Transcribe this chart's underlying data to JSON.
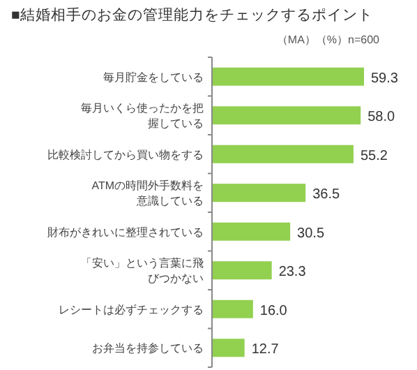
{
  "chart_data": {
    "type": "bar",
    "orientation": "horizontal",
    "title": "■結婚相手のお金の管理能力をチェックするポイント",
    "subtitle": "（MA）（%）n=600",
    "categories": [
      "毎月貯金をしている",
      "毎月いくら使ったかを把握している",
      "比較検討してから買い物をする",
      "ATMの時間外手数料を意識している",
      "財布がきれいに整理されている",
      "「安い」という言葉に飛びつかない",
      "レシートは必ずチェックする",
      "お弁当を持参している"
    ],
    "values": [
      59.3,
      58.0,
      55.2,
      36.5,
      30.5,
      23.3,
      16.0,
      12.7
    ],
    "color": "#92d050",
    "value_labels": [
      "59.3",
      "58.0",
      "55.2",
      "36.5",
      "30.5",
      "23.3",
      "16.0",
      "12.7"
    ]
  }
}
